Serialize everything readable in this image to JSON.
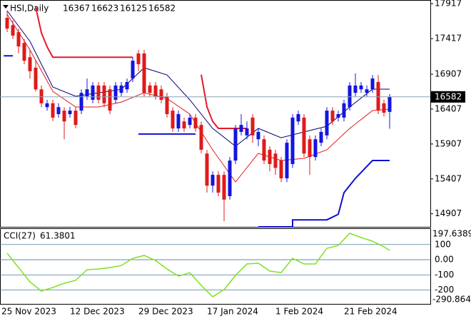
{
  "chart_data": [
    {
      "type": "candlestick",
      "title": "HSI,Daily",
      "categories": [
        "25 Nov 2023",
        null,
        null,
        null,
        null,
        null,
        null,
        null,
        null,
        null,
        null,
        null,
        "12 Dec 2023",
        null,
        null,
        null,
        null,
        null,
        null,
        null,
        null,
        null,
        null,
        null,
        "29 Dec 2023",
        null,
        null,
        null,
        null,
        null,
        null,
        null,
        null,
        null,
        null,
        null,
        "17 Jan 2024",
        null,
        null,
        null,
        null,
        null,
        null,
        null,
        null,
        null,
        null,
        null,
        "1 Feb 2024",
        null,
        null,
        null,
        null,
        null,
        null,
        null,
        null,
        null,
        null,
        null,
        "21 Feb 2024",
        null,
        null,
        null,
        null,
        null,
        null,
        null
      ],
      "open": [
        17715,
        17610,
        17510,
        17355,
        17150,
        17000,
        16690,
        16435,
        16490,
        16335,
        16385,
        16335,
        16385,
        16385,
        16590,
        16540,
        16745,
        16745,
        16690,
        16540,
        16640,
        16690,
        16845,
        17205,
        17205,
        16745,
        16745,
        16690,
        16590,
        16385,
        16130,
        16230,
        16180,
        16285,
        16180,
        15770,
        15310,
        15465,
        15465,
        15160,
        15670,
        16080,
        16030,
        16285,
        15975,
        15975,
        15825,
        15770,
        15670,
        15415,
        15620,
        16230,
        16285,
        15975,
        15720,
        15925,
        16030,
        16385,
        16285,
        16285,
        16435,
        16640,
        16690,
        16640,
        16690,
        16795,
        16490,
        16367
      ],
      "high": [
        17815,
        17680,
        17560,
        17410,
        17255,
        17100,
        16745,
        16540,
        16540,
        16490,
        16435,
        16440,
        16440,
        16690,
        16845,
        16795,
        16795,
        16795,
        16745,
        16795,
        16795,
        16845,
        17150,
        17255,
        17255,
        16795,
        16795,
        16745,
        16640,
        16435,
        16385,
        16285,
        16335,
        16335,
        16230,
        15820,
        15515,
        15515,
        15515,
        15720,
        16180,
        16335,
        16230,
        16335,
        16130,
        16030,
        15875,
        15825,
        15720,
        15975,
        16335,
        16385,
        16335,
        16030,
        16030,
        16130,
        16435,
        16435,
        16385,
        16540,
        16795,
        16920,
        16795,
        16745,
        16895,
        16895,
        16540,
        16623
      ],
      "low": [
        17510,
        17410,
        17205,
        17050,
        16845,
        16660,
        16435,
        16385,
        16235,
        16285,
        15975,
        16285,
        16130,
        16335,
        16540,
        16490,
        16490,
        16435,
        16335,
        16490,
        16590,
        16640,
        16795,
        16950,
        16590,
        16590,
        16540,
        16490,
        16285,
        16080,
        16080,
        16080,
        16130,
        16080,
        15775,
        15210,
        15210,
        15160,
        14800,
        15110,
        15620,
        16030,
        15975,
        15925,
        15875,
        15620,
        15515,
        15465,
        15360,
        15360,
        15565,
        16180,
        15720,
        15465,
        15670,
        15875,
        15975,
        16180,
        16230,
        16230,
        16385,
        16590,
        16640,
        16590,
        16640,
        16335,
        16300,
        16125
      ],
      "close": [
        17560,
        17460,
        17305,
        17100,
        16950,
        16690,
        16490,
        16490,
        16285,
        16435,
        16230,
        16385,
        16180,
        16640,
        16690,
        16745,
        16540,
        16490,
        16385,
        16745,
        16745,
        16795,
        17100,
        17050,
        16640,
        16640,
        16590,
        16540,
        16335,
        16130,
        16335,
        16130,
        16285,
        16130,
        15825,
        15310,
        15465,
        15210,
        15110,
        15670,
        16130,
        16180,
        16130,
        16030,
        16080,
        15670,
        15620,
        15565,
        15415,
        15925,
        16285,
        16335,
        15770,
        15720,
        15975,
        16080,
        16385,
        16230,
        16335,
        16490,
        16745,
        16745,
        16745,
        16690,
        16845,
        16385,
        16355,
        16582
      ],
      "up_color": "#1414e0",
      "down_color": "#e01a1a",
      "price_line_color": "#8aa0b4",
      "series": [
        {
          "color": "#00007a",
          "width": 1,
          "x": [
            0,
            4,
            8,
            12,
            16,
            20,
            24,
            28,
            32,
            36,
            40,
            44,
            48,
            52,
            56,
            60,
            64,
            67
          ],
          "values": [
            17817,
            17377,
            16723,
            16590,
            16640,
            16690,
            16999,
            16897,
            16539,
            16130,
            15875,
            16130,
            15997,
            16079,
            16161,
            16437,
            16692,
            16692
          ]
        },
        {
          "color": "#e01a1a",
          "width": 1,
          "x": [
            0,
            4,
            8,
            12,
            16,
            20,
            24,
            28,
            32,
            36,
            40,
            44,
            48,
            52,
            56,
            60,
            64,
            67
          ],
          "values": [
            17766,
            17255,
            16662,
            16437,
            16437,
            16508,
            16641,
            16560,
            16335,
            15824,
            15364,
            15773,
            15670,
            15701,
            15824,
            16130,
            16386,
            16406
          ]
        },
        {
          "color": "#e8152a",
          "width": 2,
          "x": [
            5,
            6,
            7,
            8,
            22,
            28,
            34,
            35,
            36,
            37,
            42
          ],
          "values": [
            17870,
            17500,
            17300,
            17150,
            17150,
            null,
            16900,
            16440,
            16230,
            16130,
            16130
          ]
        },
        {
          "color": "#1010d0",
          "width": 2,
          "x": [
            -0.6,
            1,
            2,
            23,
            33,
            34,
            44,
            50,
            50,
            56,
            58,
            59,
            61,
            64,
            67
          ],
          "values": [
            17170,
            17170,
            null,
            16050,
            16050,
            null,
            14720,
            14720,
            14820,
            14820,
            14900,
            15210,
            15415,
            15670,
            15670
          ]
        }
      ],
      "ylim": [
        14720,
        17970
      ],
      "yticks": [
        17917,
        17417,
        16907,
        16407,
        15907,
        15407,
        14907
      ]
    },
    {
      "type": "line",
      "title": "CCI(27)",
      "color": "#7fe020",
      "x": [
        0,
        2,
        4,
        6,
        8,
        10,
        12,
        14,
        16,
        18,
        20,
        22,
        24,
        26,
        28,
        30,
        32,
        34,
        36,
        38,
        40,
        42,
        44,
        46,
        48,
        50,
        52,
        54,
        56,
        58,
        60,
        62,
        64,
        66,
        67
      ],
      "values": [
        42,
        -52,
        -146,
        -207,
        -183,
        -155,
        -136,
        -66,
        -61,
        -52,
        -38,
        9,
        28,
        -5,
        -61,
        -108,
        -85,
        -169,
        -244,
        -197,
        -103,
        -28,
        -23,
        -75,
        -85,
        9,
        -28,
        -28,
        75,
        94,
        174,
        146,
        122,
        85,
        61.3801
      ],
      "ylim": [
        -290.8643,
        197.6389
      ],
      "yticks": [
        100,
        {
          "value": 0,
          "label": "0.00"
        },
        -100,
        -200
      ]
    }
  ]
}
